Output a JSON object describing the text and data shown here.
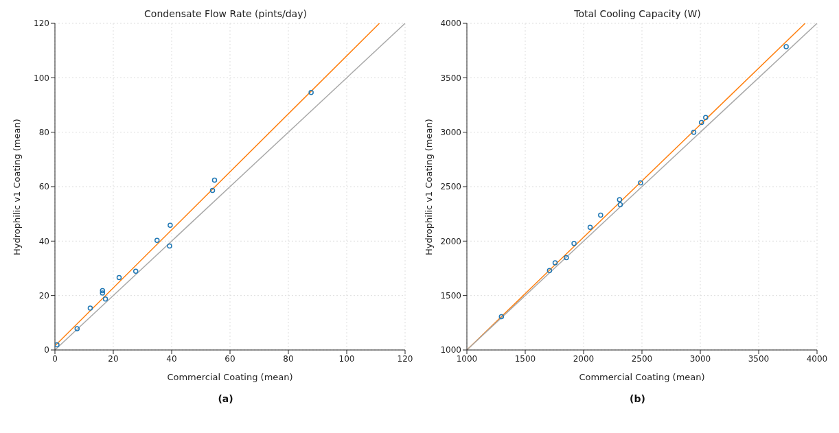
{
  "chart_data": [
    {
      "type": "scatter",
      "title": "Condensate Flow Rate (pints/day)",
      "xlabel": "Commercial Coating (mean)",
      "ylabel": "Hydrophilic v1 Coating (mean)",
      "annotations": [
        "(a)"
      ],
      "xlim": [
        0,
        120
      ],
      "ylim": [
        0,
        120
      ],
      "xticks": [
        0,
        20,
        40,
        60,
        80,
        100,
        120
      ],
      "yticks": [
        0,
        20,
        40,
        60,
        80,
        100,
        120
      ],
      "grid": true,
      "legend": false,
      "series": [
        {
          "color": "#1f77b4",
          "marker": "circle",
          "x": [
            0.7,
            7.6,
            12.1,
            16.3,
            16.3,
            17.3,
            22,
            27.7,
            35,
            39.3,
            39.5,
            54,
            54.7,
            87.8
          ],
          "values": [
            1.9,
            7.8,
            15.4,
            21.8,
            20.9,
            18.7,
            26.6,
            28.9,
            40.3,
            38.2,
            45.8,
            58.6,
            62.4,
            94.6
          ]
        },
        {
          "type": "line",
          "color": "#ff7f0e",
          "marker": "none",
          "x": [
            0,
            111.2
          ],
          "values": [
            1.5,
            120
          ]
        },
        {
          "type": "line",
          "color": "#a9a9a9",
          "marker": "none",
          "x": [
            0,
            120
          ],
          "values": [
            0,
            120
          ]
        }
      ]
    },
    {
      "type": "scatter",
      "title": "Total Cooling Capacity (W)",
      "xlabel": "Commercial Coating (mean)",
      "ylabel": "Hydrophilic v1 Coating (mean)",
      "annotations": [
        "(b)"
      ],
      "xlim": [
        1000,
        4000
      ],
      "ylim": [
        1000,
        4000
      ],
      "xticks": [
        1000,
        1500,
        2000,
        2500,
        3000,
        3500,
        4000
      ],
      "yticks": [
        1000,
        1500,
        2000,
        2500,
        3000,
        3500,
        4000
      ],
      "grid": true,
      "legend": false,
      "series": [
        {
          "color": "#1f77b4",
          "marker": "circle",
          "x": [
            1296,
            1708,
            1756,
            1852,
            1918,
            2056,
            2146,
            2308,
            2314,
            2488,
            2944,
            3010,
            3046,
            3736
          ],
          "values": [
            1306,
            1729,
            1800,
            1848,
            1978,
            2126,
            2239,
            2381,
            2334,
            2535,
            3000,
            3090,
            3135,
            3786
          ]
        },
        {
          "type": "line",
          "color": "#ff7f0e",
          "marker": "none",
          "x": [
            1000,
            3898
          ],
          "values": [
            1000,
            4000
          ]
        },
        {
          "type": "line",
          "color": "#a9a9a9",
          "marker": "none",
          "x": [
            1000,
            4000
          ],
          "values": [
            1000,
            4000
          ]
        }
      ]
    }
  ]
}
